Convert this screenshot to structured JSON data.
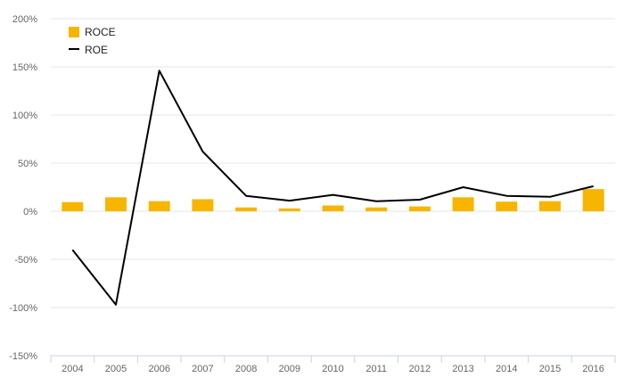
{
  "chart_data": {
    "type": "bar",
    "categories": [
      "2004",
      "2005",
      "2006",
      "2007",
      "2008",
      "2009",
      "2010",
      "2011",
      "2012",
      "2013",
      "2014",
      "2015",
      "2016"
    ],
    "series": [
      {
        "name": "ROCE",
        "type": "bar",
        "color": "#f7b500",
        "values": [
          9.5,
          14.5,
          10.5,
          12.5,
          4,
          3,
          6,
          4,
          5,
          14.5,
          10,
          10.5,
          23
        ]
      },
      {
        "name": "ROE",
        "type": "line",
        "color": "#000000",
        "values": [
          -40,
          -97,
          146,
          62,
          16,
          11,
          17,
          10.5,
          12,
          25,
          16,
          15,
          26
        ]
      }
    ],
    "yticks": [
      200,
      150,
      100,
      50,
      0,
      -50,
      -100,
      -150
    ],
    "ytick_labels": [
      "200%",
      "150%",
      "100%",
      "50%",
      "0%",
      "-50%",
      "-100%",
      "-150%"
    ],
    "ylim": [
      -150,
      200
    ],
    "grid": true,
    "legend_position": "top-left"
  }
}
